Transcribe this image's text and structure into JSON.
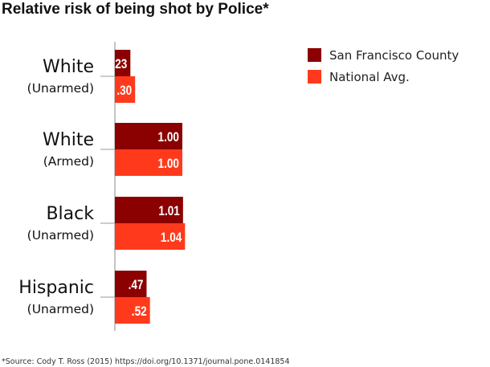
{
  "chart_data": {
    "type": "bar",
    "orientation": "horizontal",
    "title": "Relative risk of being shot by Police*",
    "categories": [
      {
        "main": "White",
        "sub": "(Unarmed)"
      },
      {
        "main": "White",
        "sub": "(Armed)"
      },
      {
        "main": "Black",
        "sub": "(Unarmed)"
      },
      {
        "main": "Hispanic",
        "sub": "(Unarmed)"
      }
    ],
    "series": [
      {
        "name": "San Francisco County",
        "color": "#8b0000",
        "values": [
          0.23,
          1.0,
          1.01,
          0.47
        ],
        "labels": [
          ".23",
          "1.00",
          "1.01",
          ".47"
        ]
      },
      {
        "name": "National Avg.",
        "color": "#ff3a1c",
        "values": [
          0.3,
          1.0,
          1.04,
          0.52
        ],
        "labels": [
          ".30",
          "1.00",
          "1.04",
          ".52"
        ]
      }
    ],
    "legend": "top-right",
    "footnote": "*Source: Cody T. Ross (2015) https://doi.org/10.1371/journal.pone.0141854"
  }
}
